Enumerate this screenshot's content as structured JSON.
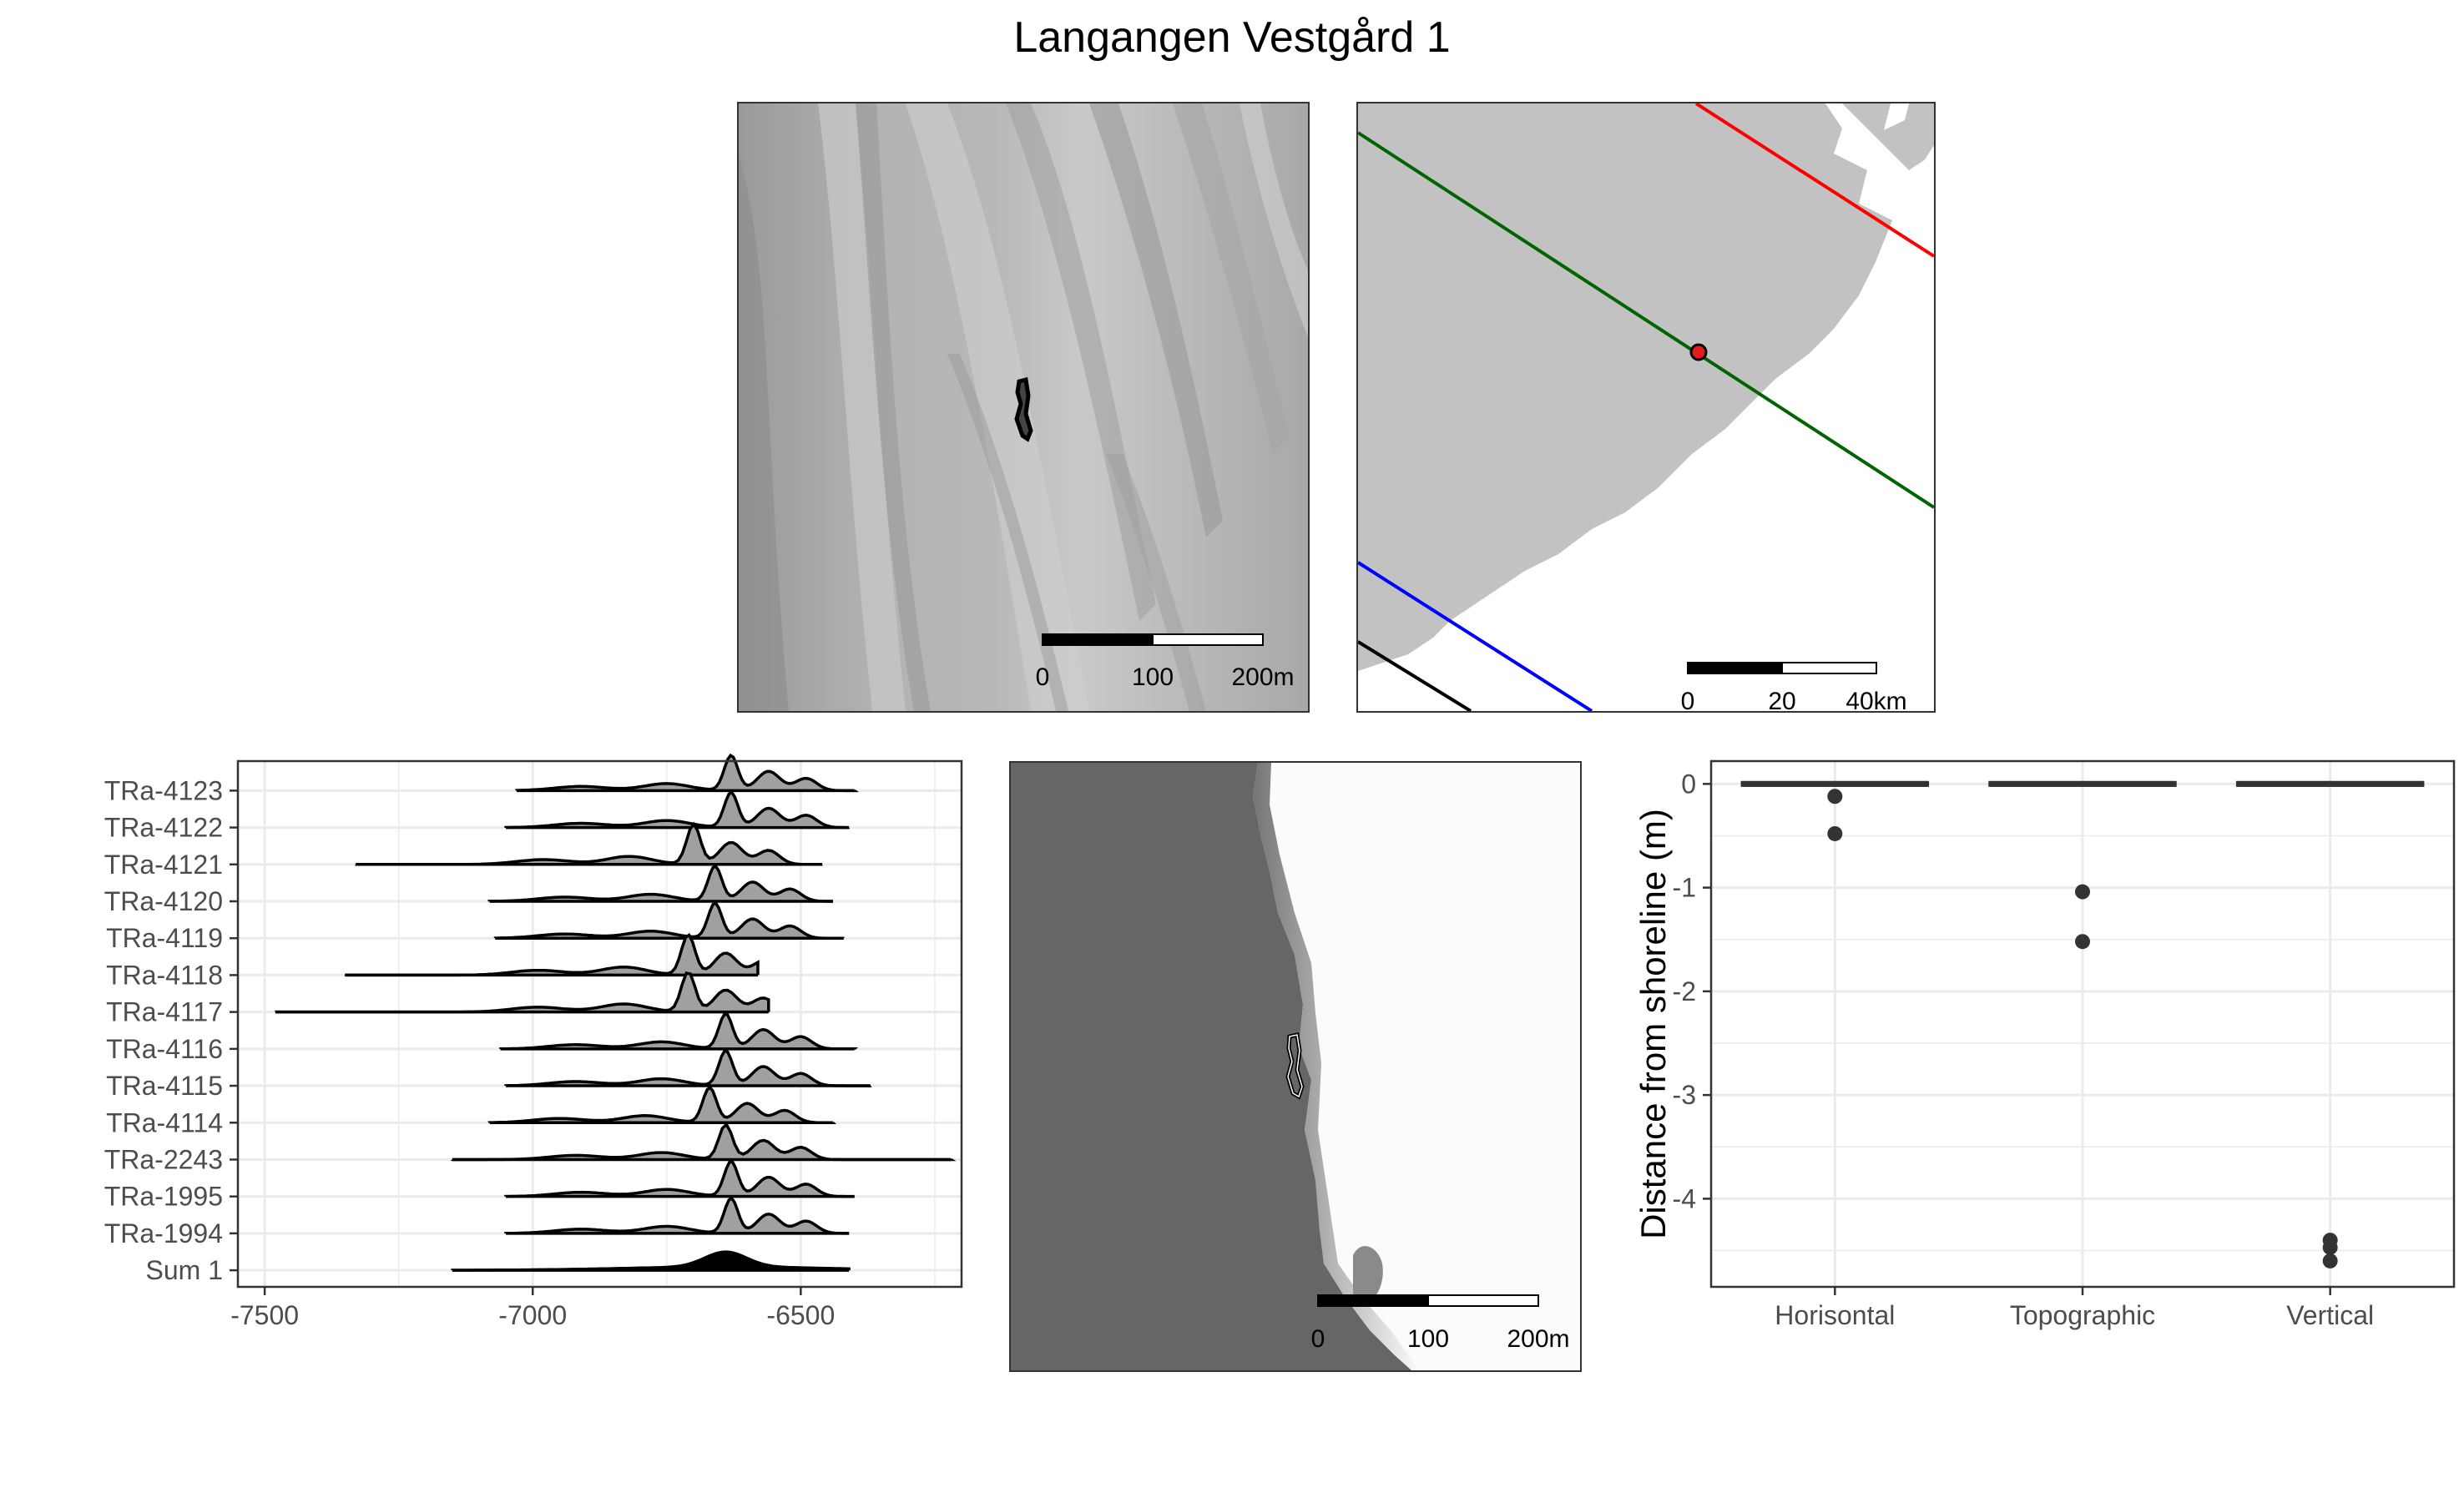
{
  "title": "Langangen Vestgård 1",
  "colors": {
    "isobase_red": "#ff0000",
    "isobase_green": "#006400",
    "isobase_blue": "#0000ff",
    "isobase_black": "#000000",
    "land": "#c2c2c2",
    "site_marker": "#e41a1c",
    "density_fill": "#a0a0a0",
    "sea_dark": "#666666"
  },
  "maps": [
    {
      "id": "hillshade",
      "scale_labels": [
        "0",
        "100",
        "200m"
      ]
    },
    {
      "id": "region",
      "scale_labels": [
        "0",
        "20",
        "40km"
      ]
    },
    {
      "id": "sea-level",
      "scale_labels": [
        "0",
        "100",
        "200m"
      ]
    }
  ],
  "chart_data": [
    {
      "type": "ridgeline",
      "xlim": [
        -7550,
        -6200
      ],
      "x_ticks": [
        -7500,
        -7000,
        -6500
      ],
      "categories": [
        "TRa-4123",
        "TRa-4122",
        "TRa-4121",
        "TRa-4120",
        "TRa-4119",
        "TRa-4118",
        "TRa-4117",
        "TRa-4116",
        "TRa-4115",
        "TRa-4114",
        "TRa-2243",
        "TRa-1995",
        "TRa-1994",
        "Sum 1"
      ],
      "series": [
        {
          "name": "TRa-4123",
          "range": [
            -7030,
            -6400
          ],
          "peak": -6630
        },
        {
          "name": "TRa-4122",
          "range": [
            -7050,
            -6410
          ],
          "peak": -6630
        },
        {
          "name": "TRa-4121",
          "range": [
            -7330,
            -6460
          ],
          "peak": -6700
        },
        {
          "name": "TRa-4120",
          "range": [
            -7080,
            -6440
          ],
          "peak": -6660
        },
        {
          "name": "TRa-4119",
          "range": [
            -7070,
            -6420
          ],
          "peak": -6660
        },
        {
          "name": "TRa-4118",
          "range": [
            -7350,
            -6580
          ],
          "peak": -6710
        },
        {
          "name": "TRa-4117",
          "range": [
            -7480,
            -6560
          ],
          "peak": -6710
        },
        {
          "name": "TRa-4116",
          "range": [
            -7060,
            -6400
          ],
          "peak": -6640
        },
        {
          "name": "TRa-4115",
          "range": [
            -7050,
            -6370
          ],
          "peak": -6640
        },
        {
          "name": "TRa-4114",
          "range": [
            -7080,
            -6440
          ],
          "peak": -6670
        },
        {
          "name": "TRa-2243",
          "range": [
            -7150,
            -6220
          ],
          "peak": -6640
        },
        {
          "name": "TRa-1995",
          "range": [
            -7050,
            -6400
          ],
          "peak": -6630
        },
        {
          "name": "TRa-1994",
          "range": [
            -7050,
            -6410
          ],
          "peak": -6630
        },
        {
          "name": "Sum 1",
          "range": [
            -7150,
            -6410
          ],
          "peak": -6640
        }
      ]
    },
    {
      "type": "box",
      "ylabel": "Distance from shoreline (m)",
      "ylim": [
        -4.85,
        0.22
      ],
      "y_ticks": [
        0,
        -1,
        -2,
        -3,
        -4
      ],
      "categories": [
        "Horisontal",
        "Topographic",
        "Vertical"
      ],
      "boxes": [
        {
          "category": "Horisontal",
          "median": 0,
          "q1": 0,
          "q3": 0,
          "outliers": [
            -0.12,
            -0.48
          ]
        },
        {
          "category": "Topographic",
          "median": 0,
          "q1": 0,
          "q3": 0,
          "outliers": [
            -1.04,
            -1.52
          ]
        },
        {
          "category": "Vertical",
          "median": 0,
          "q1": 0,
          "q3": 0,
          "outliers": [
            -4.4,
            -4.47,
            -4.6
          ]
        }
      ]
    }
  ]
}
